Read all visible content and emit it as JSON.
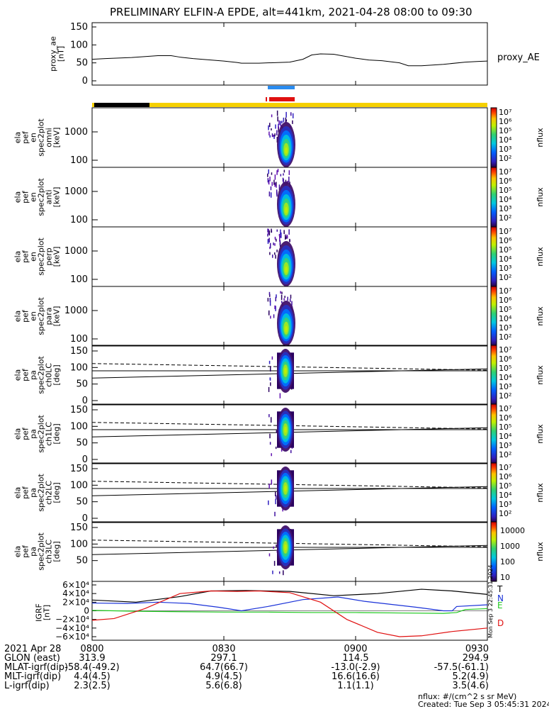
{
  "title": "PRELIMINARY ELFIN-A EPDE, alt=441km, 2021-04-28 08:00 to 09:30",
  "chart_data": {
    "type": "line",
    "time_axis": {
      "start": "08:00",
      "end": "09:30",
      "ticks": [
        "0800",
        "0830",
        "0900",
        "0930"
      ]
    },
    "panels": [
      {
        "id": "proxy_ae",
        "ylabel": "proxy_ae\n[nT]",
        "right_label": "proxy_AE",
        "ylim": [
          0,
          150
        ],
        "yticks": [
          "150",
          "100",
          "50",
          "0"
        ],
        "series": [
          {
            "name": "proxy_AE",
            "x": [
              0,
              3,
              5,
              9,
              15,
              18,
              20,
              23,
              25,
              27,
              30,
              33,
              34,
              36,
              38,
              40,
              45,
              48,
              50,
              52,
              55,
              60,
              63,
              66,
              70,
              72,
              75,
              80,
              85,
              88,
              90
            ],
            "values": [
              60,
              62,
              63,
              65,
              70,
              70,
              66,
              62,
              60,
              58,
              55,
              51,
              49,
              49,
              49,
              50,
              52,
              60,
              72,
              75,
              74,
              63,
              58,
              56,
              50,
              42,
              42,
              46,
              52,
              54,
              55
            ]
          }
        ]
      },
      {
        "id": "omni",
        "ylabel": "ela\npef\nen\nspec2plot\nomni\n[keV]",
        "yticks": [
          "1000",
          "100"
        ],
        "cbar_label": "nflux"
      },
      {
        "id": "anti",
        "ylabel": "ela\npef\nen\nspec2plot\nanti\n[keV]",
        "yticks": [
          "1000",
          "100"
        ],
        "cbar_label": "nflux"
      },
      {
        "id": "perp",
        "ylabel": "ela\npef\nen\nspec2plot\nperp\n[keV]",
        "yticks": [
          "1000",
          "100"
        ],
        "cbar_label": "nflux"
      },
      {
        "id": "para",
        "ylabel": "ela\npef\nen\nspec2plot\npara\n[keV]",
        "yticks": [
          "1000",
          "100"
        ],
        "cbar_label": "nflux"
      },
      {
        "id": "ch0LC",
        "ylabel": "ela\npef\npa\nspec2plot\nch0LC\n[deg]",
        "yticks": [
          "150",
          "100",
          "50",
          "0"
        ],
        "cbar_label": "nflux"
      },
      {
        "id": "ch1LC",
        "ylabel": "ela\npef\npa\nspec2plot\nch1LC\n[deg]",
        "yticks": [
          "150",
          "100",
          "50",
          "0"
        ],
        "cbar_label": "nflux"
      },
      {
        "id": "ch2LC",
        "ylabel": "ela\npef\npa\nspec2plot\nch2LC\n[deg]",
        "yticks": [
          "150",
          "100",
          "50",
          "0"
        ],
        "cbar_label": "nflux"
      },
      {
        "id": "ch3LC",
        "ylabel": "ela\npef\npa\nspec2plot\nch3LC\n[deg]",
        "yticks": [
          "150",
          "100",
          "50"
        ],
        "cbar_label": "nflux",
        "cbar_ticks": [
          "10000",
          "1000",
          "100",
          "10"
        ]
      },
      {
        "id": "igrf",
        "ylabel": "IGRF\n[nT]",
        "ylim": [
          -60000,
          60000
        ],
        "yticks": [
          "6×10⁴",
          "4×10⁴",
          "2×10⁴",
          "0",
          "−2×10⁴",
          "−4×10⁴",
          "−6×10⁴"
        ],
        "side_note": "Mon Sep 3 22:45:31 2024",
        "series": [
          {
            "name": "T",
            "color": "#000000",
            "x": [
              0,
              10,
              20,
              27,
              35,
              45,
              55,
              65,
              75,
              82,
              90
            ],
            "values": [
              25000,
              20000,
              33000,
              46000,
              47000,
              45000,
              35000,
              40000,
              50000,
              46000,
              38000
            ]
          },
          {
            "name": "N",
            "color": "#1a32d8",
            "x": [
              0,
              8,
              15,
              22,
              29,
              34,
              40,
              48,
              56,
              62,
              74,
              80,
              82,
              83,
              90
            ],
            "values": [
              18000,
              17000,
              20000,
              17000,
              8000,
              0,
              10000,
              26000,
              32000,
              22000,
              8000,
              0,
              0,
              10000,
              14000
            ]
          },
          {
            "name": "E",
            "color": "#1ec81e",
            "x": [
              0,
              10,
              20,
              30,
              40,
              50,
              60,
              70,
              80,
              83,
              85,
              90
            ],
            "values": [
              1000,
              -1000,
              -2000,
              -3000,
              -3000,
              -4000,
              -4000,
              -5000,
              -6000,
              -4000,
              3000,
              5000
            ]
          },
          {
            "name": "D",
            "color": "#e01010",
            "x": [
              0,
              5,
              12,
              20,
              27,
              33,
              38,
              45,
              52,
              58,
              65,
              70,
              75,
              82,
              90
            ],
            "values": [
              -22000,
              -18000,
              5000,
              40000,
              46000,
              45000,
              46000,
              42000,
              20000,
              -20000,
              -50000,
              -60000,
              -58000,
              -48000,
              -40000
            ]
          }
        ]
      }
    ],
    "colorbar_exponents": [
      "10⁷",
      "10⁶",
      "10⁵",
      "10⁴",
      "10³",
      "10²"
    ],
    "footer": {
      "rows": [
        {
          "label": "2021 Apr 28",
          "values": [
            "0800",
            "0830",
            "0900",
            "0930"
          ]
        },
        {
          "label": "GLON (east)",
          "values": [
            "313.9",
            "297.1",
            "114.5",
            "294.9"
          ]
        },
        {
          "label": "MLAT-igrf(dip)",
          "values": [
            "-58.4(-49.2)",
            "64.7(66.7)",
            "-13.0(-2.9)",
            "-57.5(-61.1)"
          ]
        },
        {
          "label": "MLT-igrf(dip)",
          "values": [
            "4.4(4.5)",
            "4.9(4.5)",
            "16.6(16.6)",
            "5.2(4.9)"
          ]
        },
        {
          "label": "L-igrf(dip)",
          "values": [
            "2.3(2.5)",
            "5.6(6.8)",
            "1.1(1.1)",
            "3.5(4.6)"
          ]
        }
      ],
      "units_note": "nflux: #/(cm^2 s sr MeV)",
      "created": "Created: Tue Sep  3 05:45:31 2024"
    }
  }
}
